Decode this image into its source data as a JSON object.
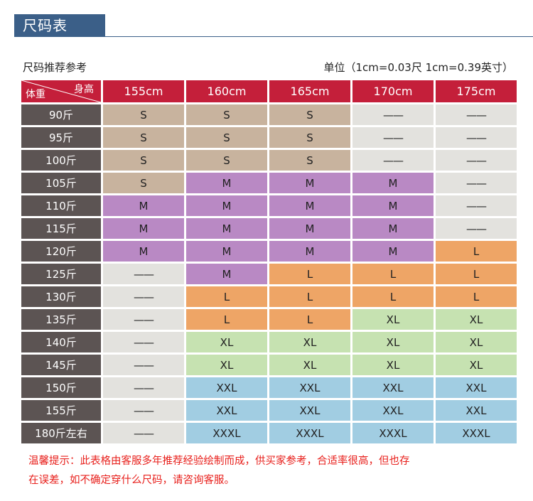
{
  "header": {
    "title": "尺码表"
  },
  "subhead": {
    "left": "尺码推荐参考",
    "right": "单位（1cm=0.03尺 1cm=0.39英寸）"
  },
  "table": {
    "corner_top": "身高",
    "corner_bottom": "体重",
    "heights": [
      "155cm",
      "160cm",
      "165cm",
      "170cm",
      "175cm"
    ],
    "rows": [
      {
        "weight": "90斤",
        "sizes": [
          "S",
          "S",
          "S",
          "——",
          "——"
        ]
      },
      {
        "weight": "95斤",
        "sizes": [
          "S",
          "S",
          "S",
          "——",
          "——"
        ]
      },
      {
        "weight": "100斤",
        "sizes": [
          "S",
          "S",
          "S",
          "——",
          "——"
        ]
      },
      {
        "weight": "105斤",
        "sizes": [
          "S",
          "M",
          "M",
          "M",
          "——"
        ]
      },
      {
        "weight": "110斤",
        "sizes": [
          "M",
          "M",
          "M",
          "M",
          "——"
        ]
      },
      {
        "weight": "115斤",
        "sizes": [
          "M",
          "M",
          "M",
          "M",
          "——"
        ]
      },
      {
        "weight": "120斤",
        "sizes": [
          "M",
          "M",
          "M",
          "M",
          "L"
        ]
      },
      {
        "weight": "125斤",
        "sizes": [
          "——",
          "M",
          "L",
          "L",
          "L"
        ]
      },
      {
        "weight": "130斤",
        "sizes": [
          "——",
          "L",
          "L",
          "L",
          "L"
        ]
      },
      {
        "weight": "135斤",
        "sizes": [
          "——",
          "L",
          "L",
          "XL",
          "XL"
        ]
      },
      {
        "weight": "140斤",
        "sizes": [
          "——",
          "XL",
          "XL",
          "XL",
          "XL"
        ]
      },
      {
        "weight": "145斤",
        "sizes": [
          "——",
          "XL",
          "XL",
          "XL",
          "XL"
        ]
      },
      {
        "weight": "150斤",
        "sizes": [
          "——",
          "XXL",
          "XXL",
          "XXL",
          "XXL"
        ]
      },
      {
        "weight": "155斤",
        "sizes": [
          "——",
          "XXL",
          "XXL",
          "XXL",
          "XXL"
        ]
      },
      {
        "weight": "180斤左右",
        "sizes": [
          "——",
          "XXXL",
          "XXXL",
          "XXXL",
          "XXXL"
        ]
      }
    ]
  },
  "size_colors": {
    "S": "#c8b39e",
    "M": "#b989c4",
    "L": "#eea566",
    "XL": "#c6e2b1",
    "XXL": "#a1cde2",
    "XXXL": "#a1cde2",
    "——": "#e3e2de"
  },
  "tip": {
    "line1": "温馨提示：此表格由客服多年推荐经验绘制而成，供买家参考，合适率很高，但也存",
    "line2": "在误差，如不确定穿什么尺码，请咨询客服。"
  }
}
